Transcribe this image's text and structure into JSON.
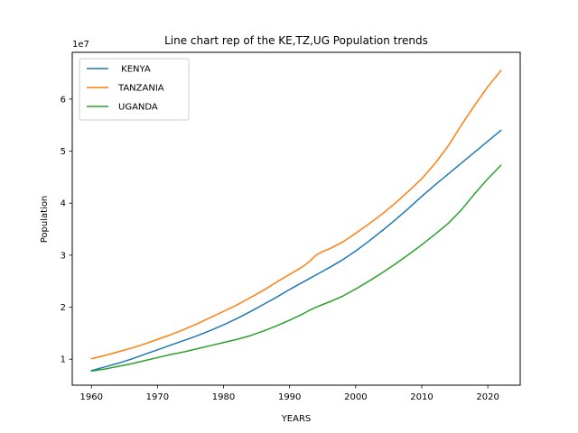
{
  "chart_data": {
    "type": "line",
    "title": "Line chart rep of the KE,TZ,UG Population trends",
    "xlabel": "YEARS",
    "ylabel": "Population",
    "y_offset_label": "1e7",
    "xlim": [
      1957.1,
      2024.9
    ],
    "ylim": [
      5000000,
      69000000
    ],
    "xticks": [
      1960,
      1970,
      1980,
      1990,
      2000,
      2010,
      2020
    ],
    "yticks": [
      10000000,
      20000000,
      30000000,
      40000000,
      50000000,
      60000000
    ],
    "ytick_labels": [
      "1",
      "2",
      "3",
      "4",
      "5",
      "6"
    ],
    "grid": false,
    "legend_position": "upper-left",
    "x": [
      1960,
      1962,
      1964,
      1966,
      1968,
      1970,
      1972,
      1974,
      1976,
      1978,
      1980,
      1982,
      1984,
      1986,
      1988,
      1990,
      1992,
      1993,
      1994,
      1995,
      1996,
      1998,
      2000,
      2002,
      2004,
      2006,
      2008,
      2010,
      2012,
      2014,
      2016,
      2018,
      2020,
      2022
    ],
    "series": [
      {
        "name": " KENYA",
        "color": "#1f77b4",
        "values": [
          7800000,
          8500000,
          9200000,
          10000000,
          10900000,
          11800000,
          12700000,
          13600000,
          14500000,
          15500000,
          16600000,
          17800000,
          19100000,
          20500000,
          21900000,
          23400000,
          24800000,
          25500000,
          26200000,
          26900000,
          27600000,
          29100000,
          30800000,
          32700000,
          34700000,
          36800000,
          39000000,
          41300000,
          43500000,
          45600000,
          47700000,
          49800000,
          51900000,
          54000000
        ]
      },
      {
        "name": "TANZANIA",
        "color": "#ff7f0e",
        "values": [
          10100000,
          10700000,
          11400000,
          12100000,
          12900000,
          13800000,
          14700000,
          15700000,
          16800000,
          18000000,
          19200000,
          20400000,
          21800000,
          23200000,
          24800000,
          26300000,
          27800000,
          28800000,
          30000000,
          30700000,
          31200000,
          32500000,
          34200000,
          36000000,
          37900000,
          40000000,
          42300000,
          44700000,
          47600000,
          51000000,
          55000000,
          58800000,
          62400000,
          65500000
        ]
      },
      {
        "name": "UGANDA",
        "color": "#2ca02c",
        "values": [
          7700000,
          8100000,
          8600000,
          9100000,
          9700000,
          10300000,
          10900000,
          11400000,
          12000000,
          12600000,
          13200000,
          13800000,
          14500000,
          15400000,
          16400000,
          17500000,
          18700000,
          19400000,
          20000000,
          20500000,
          21000000,
          22100000,
          23500000,
          25000000,
          26600000,
          28300000,
          30100000,
          32000000,
          34000000,
          36100000,
          38700000,
          41800000,
          44700000,
          47300000
        ]
      }
    ]
  }
}
